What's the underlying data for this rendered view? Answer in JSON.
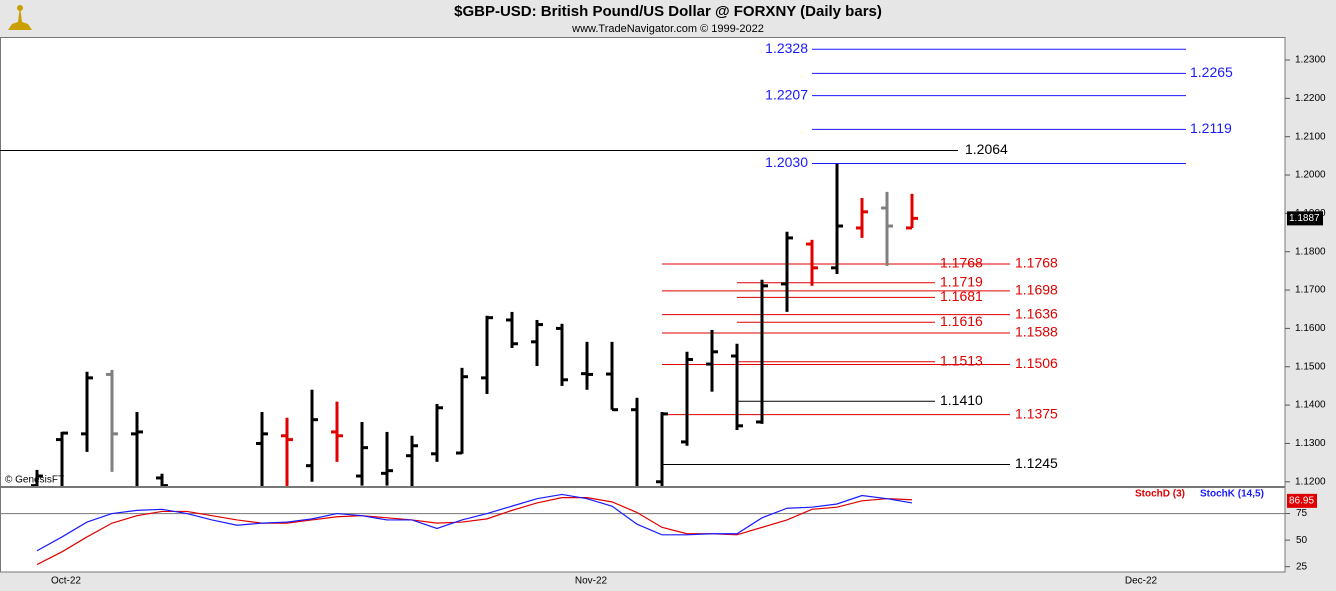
{
  "chart_data": [
    {
      "type": "ohlc",
      "title": "$GBP-USD:  British Pound/US Dollar @ FORXNY  (Daily bars)",
      "subtitle": "www.TradeNavigator.com © 1999-2022",
      "watermark": "© GenesisFT",
      "open": [
        1.119,
        1.131,
        1.1325,
        1.148,
        1.1325,
        1.121,
        null,
        null,
        null,
        1.13,
        1.132,
        1.1242,
        1.133,
        1.1215,
        1.1222,
        1.1268,
        1.1273,
        1.1275,
        1.1471,
        1.1622,
        1.1565,
        1.16,
        1.1482,
        1.1481,
        1.1388,
        1.12,
        1.1304,
        1.1507,
        1.1528,
        1.1356,
        1.1716,
        1.182,
        1.1758,
        1.1862,
        1.1914,
        1.1862,
        null,
        null,
        null,
        null,
        null,
        null,
        null,
        null,
        null,
        null
      ],
      "high": [
        1.1231,
        1.133,
        1.1487,
        1.1492,
        1.1382,
        1.1221,
        null,
        null,
        null,
        1.1382,
        1.1367,
        1.144,
        1.1409,
        1.1356,
        1.133,
        1.132,
        1.1403,
        1.1497,
        1.1633,
        1.1643,
        1.1622,
        1.1612,
        1.1565,
        1.1565,
        1.1419,
        1.1382,
        1.1539,
        1.1596,
        1.156,
        1.1727,
        1.1852,
        1.1831,
        1.2029,
        1.194,
        1.1956,
        1.1951,
        null,
        null,
        null,
        null,
        null,
        null,
        null,
        null,
        null,
        null
      ],
      "low": [
        1.115,
        1.116,
        1.1278,
        1.1226,
        1.115,
        1.115,
        null,
        null,
        null,
        1.115,
        1.115,
        1.12,
        1.1252,
        1.119,
        1.119,
        1.1189,
        1.1252,
        1.1273,
        1.1429,
        1.1549,
        1.1502,
        1.145,
        1.144,
        1.1388,
        1.115,
        1.115,
        1.1294,
        1.1435,
        1.1335,
        1.1351,
        1.1643,
        1.1711,
        1.1742,
        1.1836,
        1.1763,
        1.1862,
        null,
        null,
        null,
        null,
        null,
        null,
        null,
        null,
        null,
        null
      ],
      "close": [
        1.1215,
        1.1327,
        1.1471,
        1.1325,
        1.133,
        1.119,
        null,
        null,
        null,
        1.1325,
        1.131,
        1.1362,
        1.132,
        1.1289,
        1.1229,
        1.1294,
        1.1393,
        1.1474,
        1.1628,
        1.156,
        1.161,
        1.1466,
        1.148,
        1.1388,
        1.116,
        1.1377,
        1.1519,
        1.1539,
        1.1346,
        1.1711,
        1.1836,
        1.1758,
        1.1867,
        1.1904,
        1.1867,
        1.1887,
        null,
        null,
        null,
        null,
        null,
        null,
        null,
        null,
        null,
        null
      ],
      "colors": [
        "#000000",
        "#000000",
        "#000000",
        "#808080",
        "#000000",
        "#000000",
        null,
        null,
        null,
        "#000000",
        "#e00000",
        "#000000",
        "#e00000",
        "#000000",
        "#000000",
        "#000000",
        "#000000",
        "#000000",
        "#000000",
        "#000000",
        "#000000",
        "#000000",
        "#000000",
        "#000000",
        "#000000",
        "#000000",
        "#000000",
        "#000000",
        "#000000",
        "#000000",
        "#000000",
        "#e00000",
        "#000000",
        "#e00000",
        "#808080",
        "#e00000",
        null,
        null,
        null,
        null,
        null,
        null,
        null,
        null,
        null,
        null
      ],
      "ylim": [
        1.1189,
        1.236
      ],
      "yticks": [
        {
          "value": 1.12,
          "label": "1.1200"
        },
        {
          "value": 1.13,
          "label": "1.1300"
        },
        {
          "value": 1.14,
          "label": "1.1400"
        },
        {
          "value": 1.15,
          "label": "1.1500"
        },
        {
          "value": 1.16,
          "label": "1.1600"
        },
        {
          "value": 1.17,
          "label": "1.1700"
        },
        {
          "value": 1.18,
          "label": "1.1800"
        },
        {
          "value": 1.19,
          "label": "1.1900"
        },
        {
          "value": 1.2,
          "label": "1.2000"
        },
        {
          "value": 1.21,
          "label": "1.2100"
        },
        {
          "value": 1.22,
          "label": "1.2200"
        },
        {
          "value": 1.23,
          "label": "1.2300"
        }
      ],
      "last_price": 1.1887,
      "levels": [
        {
          "value": 1.2328,
          "label": "1.2328",
          "color": "#1a1aff"
        },
        {
          "value": 1.2265,
          "label": "1.2265",
          "color": "#1a1aff"
        },
        {
          "value": 1.2207,
          "label": "1.2207",
          "color": "#1a1aff"
        },
        {
          "value": 1.2119,
          "label": "1.2119",
          "color": "#1a1aff"
        },
        {
          "value": 1.203,
          "label": "1.2030",
          "color": "#1a1aff"
        },
        {
          "value": 1.2064,
          "label": "1.2064",
          "color": "#000000"
        },
        {
          "value": 1.1768,
          "label": "1.1768",
          "color": "#e00000"
        },
        {
          "value": 1.1768,
          "label": "1.1768",
          "color": "#e00000"
        },
        {
          "value": 1.1719,
          "label": "1.1719",
          "color": "#e00000"
        },
        {
          "value": 1.1698,
          "label": "1.1698",
          "color": "#e00000"
        },
        {
          "value": 1.1681,
          "label": "1.1681",
          "color": "#e00000"
        },
        {
          "value": 1.1636,
          "label": "1.1636",
          "color": "#e00000"
        },
        {
          "value": 1.1616,
          "label": "1.1616",
          "color": "#e00000"
        },
        {
          "value": 1.1588,
          "label": "1.1588",
          "color": "#e00000"
        },
        {
          "value": 1.1513,
          "label": "1.1513",
          "color": "#e00000"
        },
        {
          "value": 1.1506,
          "label": "1.1506",
          "color": "#e00000"
        },
        {
          "value": 1.141,
          "label": "1.1410",
          "color": "#000000"
        },
        {
          "value": 1.1375,
          "label": "1.1375",
          "color": "#e00000"
        },
        {
          "value": 1.1245,
          "label": "1.1245",
          "color": "#000000"
        }
      ]
    },
    {
      "type": "line",
      "categories": [
        null,
        "Oct-22",
        null,
        null,
        null,
        null,
        null,
        null,
        null,
        null,
        null,
        null,
        null,
        null,
        null,
        null,
        null,
        null,
        null,
        null,
        null,
        null,
        "Nov-22",
        null,
        null,
        null,
        null,
        null,
        null,
        null,
        null,
        null,
        null,
        null,
        null,
        null,
        null,
        null,
        null,
        null,
        null,
        null,
        null,
        null,
        "Dec-22",
        null
      ],
      "series": [
        {
          "name": "StochD (3)",
          "color": "#e00000",
          "values": [
            27,
            39,
            53,
            66,
            73,
            77,
            77,
            73,
            69,
            66,
            66,
            69,
            72,
            73,
            71,
            69,
            66,
            67,
            70,
            78,
            85,
            90,
            90,
            86,
            76,
            62,
            56,
            56,
            55,
            62,
            69,
            79,
            81,
            87,
            89,
            88,
            null,
            null,
            null,
            null,
            null,
            null,
            null,
            null,
            null,
            null
          ]
        },
        {
          "name": "StochK (14,5)",
          "color": "#1a1aff",
          "values": [
            40,
            53,
            67,
            75,
            78,
            79,
            75,
            69,
            64,
            66,
            67,
            70,
            75,
            73,
            69,
            69,
            61,
            69,
            75,
            82,
            89,
            93,
            89,
            82,
            65,
            55,
            55,
            56,
            56,
            71,
            80,
            81,
            84,
            92,
            89,
            85,
            null,
            null,
            null,
            null,
            null,
            null,
            null,
            null,
            null,
            null
          ]
        }
      ],
      "ylim": [
        20,
        100
      ],
      "yticks": [
        25,
        50,
        75
      ],
      "hline": 75,
      "last_value": 86.95
    }
  ]
}
